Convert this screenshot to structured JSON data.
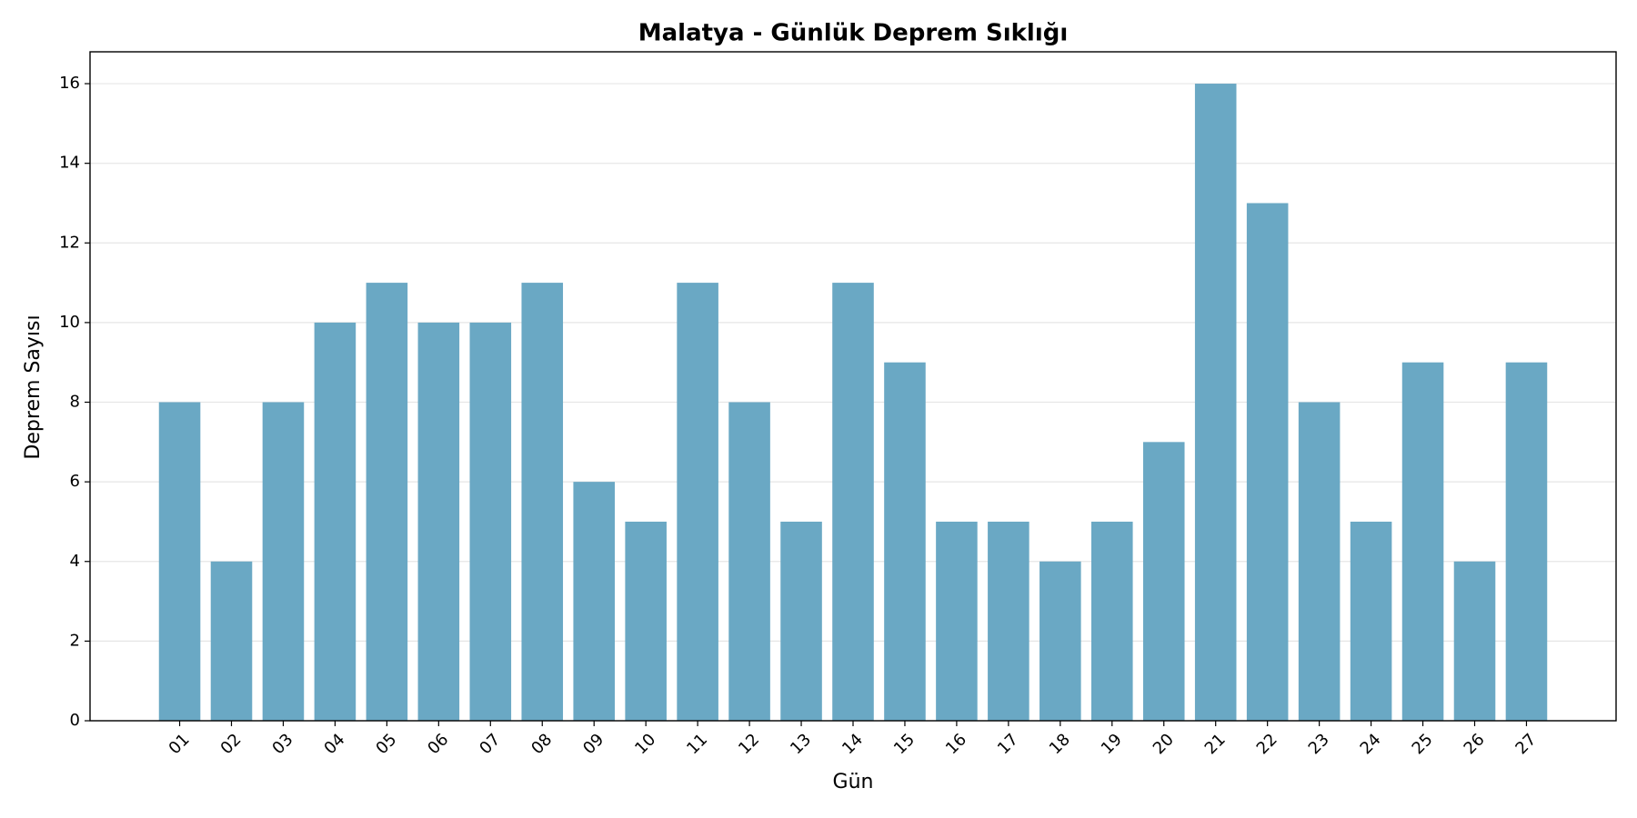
{
  "chart_data": {
    "type": "bar",
    "title": "Malatya - Günlük Deprem Sıklığı",
    "x_label": "Gün",
    "y_label": "Deprem Sayısı",
    "categories": [
      "01",
      "02",
      "03",
      "04",
      "05",
      "06",
      "07",
      "08",
      "09",
      "10",
      "11",
      "12",
      "13",
      "14",
      "15",
      "16",
      "17",
      "18",
      "19",
      "20",
      "21",
      "22",
      "23",
      "24",
      "25",
      "26",
      "27"
    ],
    "values": [
      8,
      4,
      8,
      10,
      11,
      10,
      10,
      11,
      6,
      5,
      11,
      8,
      5,
      11,
      9,
      5,
      5,
      4,
      5,
      7,
      16,
      13,
      8,
      5,
      9,
      4,
      9
    ],
    "color": "#6aa8c4",
    "ylim": [
      0,
      16.8
    ],
    "yticks": [
      0,
      2,
      4,
      6,
      8,
      10,
      12,
      14,
      16
    ],
    "grid": true
  }
}
